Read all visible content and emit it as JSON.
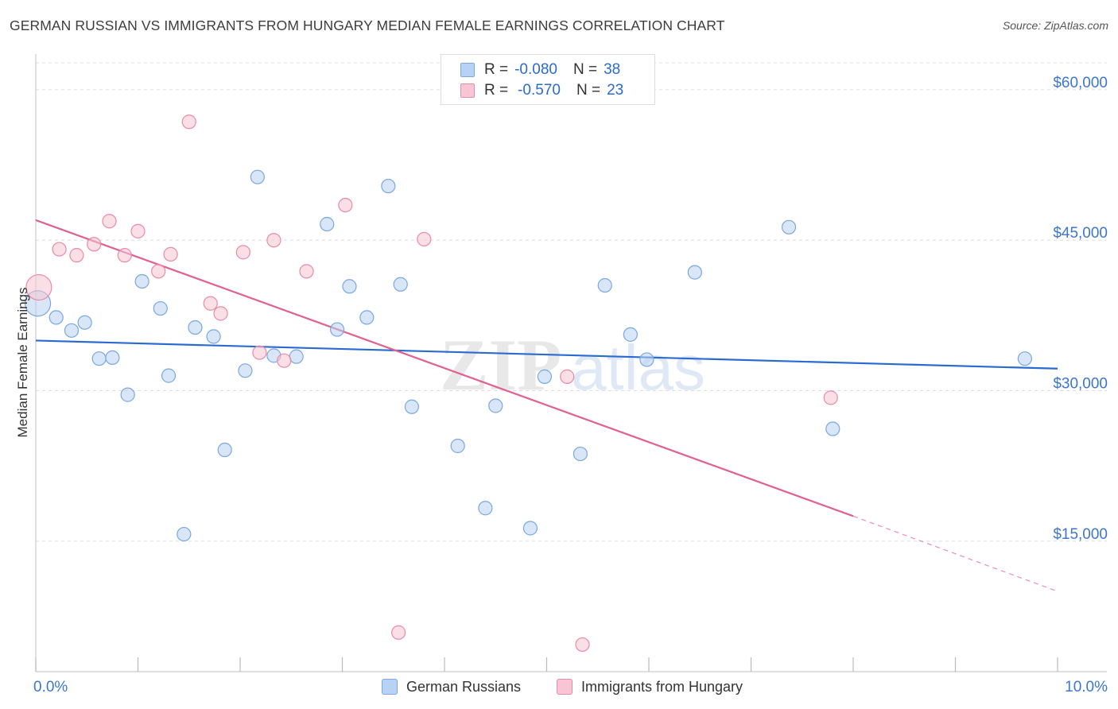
{
  "header": {
    "title": "GERMAN RUSSIAN VS IMMIGRANTS FROM HUNGARY MEDIAN FEMALE EARNINGS CORRELATION CHART",
    "source": "Source: ZipAtlas.com"
  },
  "legend": {
    "series1": {
      "r_label": "R =",
      "r_value": "-0.080",
      "n_label": "N =",
      "n_value": "38"
    },
    "series2": {
      "r_label": "R =",
      "r_value": "-0.570",
      "n_label": "N =",
      "n_value": "23"
    }
  },
  "bottom_legend": {
    "series1": "German Russians",
    "series2": "Immigrants from Hungary"
  },
  "watermark": {
    "part1": "ZIP",
    "part2": "atlas"
  },
  "colors": {
    "blue_fill": "#b8d2f3",
    "blue_stroke": "#7aa7e0",
    "blue_line": "#2a6bd1",
    "pink_fill": "#f8c5d4",
    "pink_stroke": "#e98aa8",
    "pink_line": "#e0628e",
    "axis_text": "#3d76d0",
    "grid": "#dddddd"
  },
  "chart_data": {
    "type": "scatter",
    "title": "GERMAN RUSSIAN VS IMMIGRANTS FROM HUNGARY MEDIAN FEMALE EARNINGS CORRELATION CHART",
    "xlabel": "",
    "ylabel": "Median Female Earnings",
    "xlim": [
      0,
      10
    ],
    "ylim": [
      2000,
      63000
    ],
    "x_tick_labels": [
      "0.0%",
      "10.0%"
    ],
    "y_ticks": [
      15000,
      30000,
      45000,
      60000
    ],
    "y_tick_labels": [
      "$15,000",
      "$30,000",
      "$45,000",
      "$60,000"
    ],
    "series": [
      {
        "name": "German Russians",
        "color": "blue",
        "R": -0.08,
        "N": 38,
        "points": [
          {
            "x": 0.02,
            "y": 38700,
            "big": true
          },
          {
            "x": 0.2,
            "y": 37300
          },
          {
            "x": 0.35,
            "y": 36000
          },
          {
            "x": 0.48,
            "y": 36800
          },
          {
            "x": 0.62,
            "y": 33200
          },
          {
            "x": 0.75,
            "y": 33300
          },
          {
            "x": 0.9,
            "y": 29600
          },
          {
            "x": 1.04,
            "y": 40900
          },
          {
            "x": 1.22,
            "y": 38200
          },
          {
            "x": 1.3,
            "y": 31500
          },
          {
            "x": 1.45,
            "y": 15700
          },
          {
            "x": 1.56,
            "y": 36300
          },
          {
            "x": 1.74,
            "y": 35400
          },
          {
            "x": 1.85,
            "y": 24100
          },
          {
            "x": 2.05,
            "y": 32000
          },
          {
            "x": 2.17,
            "y": 51300
          },
          {
            "x": 2.33,
            "y": 33500
          },
          {
            "x": 2.55,
            "y": 33400
          },
          {
            "x": 2.85,
            "y": 46600
          },
          {
            "x": 2.95,
            "y": 36100
          },
          {
            "x": 3.07,
            "y": 40400
          },
          {
            "x": 3.24,
            "y": 37300
          },
          {
            "x": 3.45,
            "y": 50400
          },
          {
            "x": 3.57,
            "y": 40600
          },
          {
            "x": 3.68,
            "y": 28400
          },
          {
            "x": 4.13,
            "y": 24500
          },
          {
            "x": 4.4,
            "y": 18300
          },
          {
            "x": 4.5,
            "y": 28500
          },
          {
            "x": 4.84,
            "y": 16300
          },
          {
            "x": 4.98,
            "y": 31400
          },
          {
            "x": 5.33,
            "y": 23700
          },
          {
            "x": 5.57,
            "y": 40500
          },
          {
            "x": 5.82,
            "y": 35600
          },
          {
            "x": 5.98,
            "y": 33100
          },
          {
            "x": 6.45,
            "y": 41800
          },
          {
            "x": 7.37,
            "y": 46300
          },
          {
            "x": 7.8,
            "y": 26200
          },
          {
            "x": 9.68,
            "y": 33200
          }
        ],
        "trend": {
          "x1": 0,
          "y1": 35000,
          "x2": 10,
          "y2": 32200
        }
      },
      {
        "name": "Immigrants from Hungary",
        "color": "pink",
        "R": -0.57,
        "N": 23,
        "points": [
          {
            "x": 0.03,
            "y": 40300,
            "big": true
          },
          {
            "x": 0.23,
            "y": 44100
          },
          {
            "x": 0.4,
            "y": 43500
          },
          {
            "x": 0.57,
            "y": 44600
          },
          {
            "x": 0.72,
            "y": 46900
          },
          {
            "x": 0.87,
            "y": 43500
          },
          {
            "x": 1.0,
            "y": 45900
          },
          {
            "x": 1.2,
            "y": 41900
          },
          {
            "x": 1.32,
            "y": 43600
          },
          {
            "x": 1.5,
            "y": 56800
          },
          {
            "x": 1.71,
            "y": 38700
          },
          {
            "x": 1.81,
            "y": 37700
          },
          {
            "x": 2.03,
            "y": 43800
          },
          {
            "x": 2.19,
            "y": 33800
          },
          {
            "x": 2.33,
            "y": 45000
          },
          {
            "x": 2.43,
            "y": 33000
          },
          {
            "x": 2.65,
            "y": 41900
          },
          {
            "x": 3.03,
            "y": 48500
          },
          {
            "x": 3.55,
            "y": 5900
          },
          {
            "x": 3.8,
            "y": 45100
          },
          {
            "x": 5.2,
            "y": 31400
          },
          {
            "x": 5.35,
            "y": 4700
          },
          {
            "x": 7.78,
            "y": 29300
          }
        ],
        "trend": {
          "x1": 0,
          "y1": 47000,
          "x2": 8.0,
          "y2": 17500
        },
        "trend_extension": {
          "x1": 8.0,
          "y1": 17500,
          "x2": 10,
          "y2": 10000
        }
      }
    ]
  }
}
